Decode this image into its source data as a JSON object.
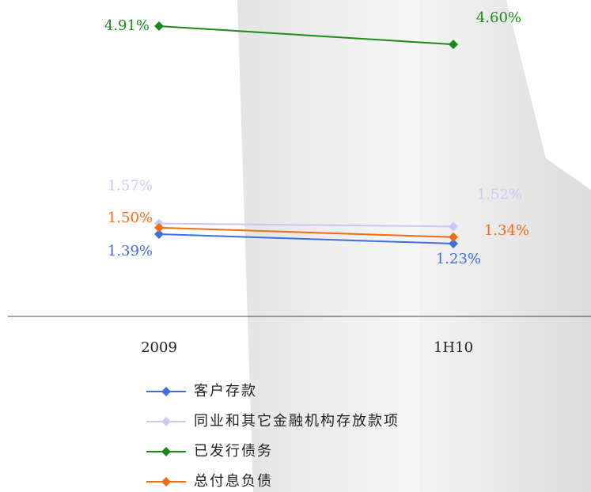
{
  "chart_data": {
    "type": "line",
    "categories": [
      "2009",
      "1H10"
    ],
    "series": [
      {
        "name": "客户存款",
        "color": "#3d6fe3",
        "values": [
          1.39,
          1.23
        ],
        "value_labels": [
          "1.39%",
          "1.23%"
        ]
      },
      {
        "name": "同业和其它金融机构存放款项",
        "color": "#c9c9f4",
        "values": [
          1.57,
          1.52
        ],
        "value_labels": [
          "1.57%",
          "1.52%"
        ]
      },
      {
        "name": "已发行债务",
        "color": "#1b8a1b",
        "values": [
          4.91,
          4.6
        ],
        "value_labels": [
          "4.91%",
          "4.60%"
        ]
      },
      {
        "name": "总付息负债",
        "color": "#f26b12",
        "values": [
          1.5,
          1.34
        ],
        "value_labels": [
          "1.50%",
          "1.34%"
        ]
      }
    ]
  }
}
